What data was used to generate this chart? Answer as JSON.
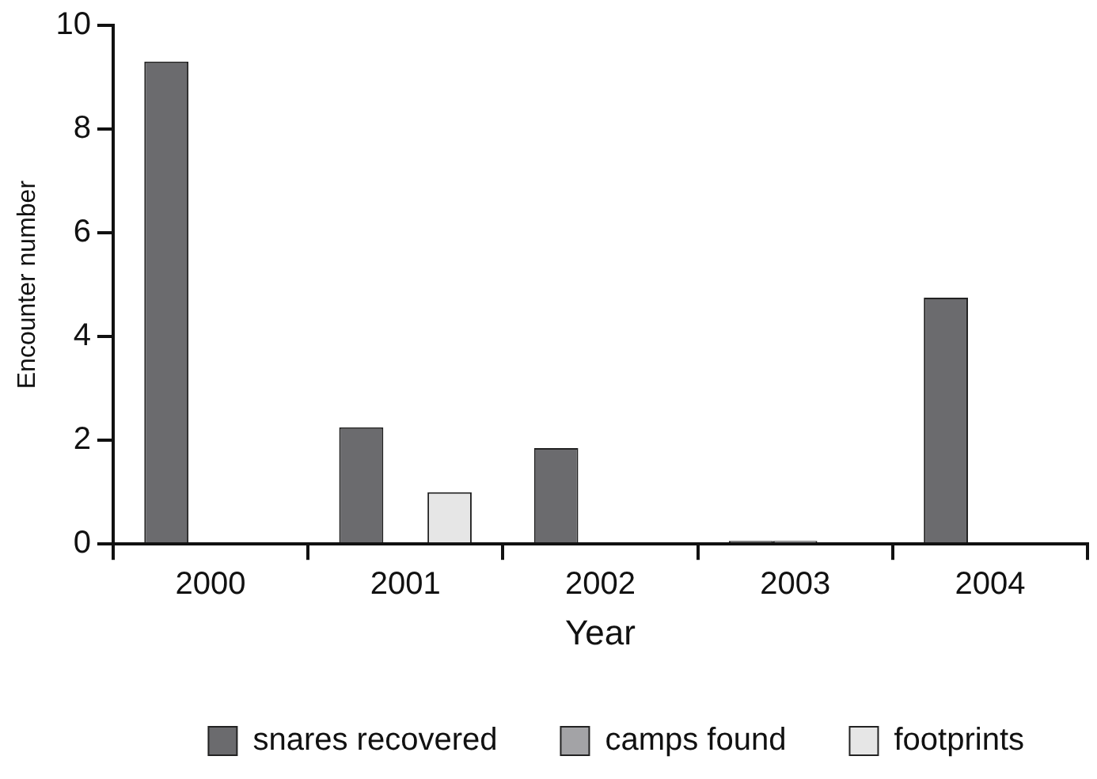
{
  "chart_data": {
    "type": "bar",
    "xlabel": "Year",
    "ylabel": "Encounter number",
    "categories": [
      "2000",
      "2001",
      "2002",
      "2003",
      "2004"
    ],
    "series": [
      {
        "name": "snares recovered",
        "color": "#6b6b6e",
        "values": [
          9.3,
          2.25,
          1.85,
          0.06,
          4.75
        ]
      },
      {
        "name": "camps found",
        "color": "#a3a3a6",
        "values": [
          0,
          0,
          0,
          0.06,
          0
        ]
      },
      {
        "name": "footprints",
        "color": "#e6e6e6",
        "values": [
          0,
          1.0,
          0,
          0,
          0
        ]
      }
    ],
    "ylim": [
      0,
      10
    ],
    "yticks": [
      0,
      2,
      4,
      6,
      8,
      10
    ],
    "grid": false,
    "legend": "bottom"
  }
}
